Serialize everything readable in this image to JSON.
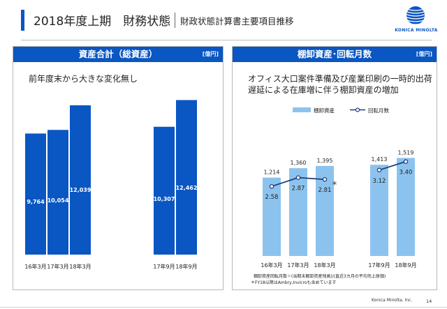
{
  "header": {
    "title": "2018年度上期　財務状態",
    "subtitle": "財政状態計算書主要項目推移",
    "logo_text": "KONICA MINOLTA"
  },
  "colors": {
    "accent": "#0a56c2",
    "bar_light": "#8cc3ee",
    "line": "#1f3f7a"
  },
  "left_panel": {
    "title": "資産合計（総資産）",
    "unit": "[億円]",
    "note": "前年度末から大きな変化無し"
  },
  "right_panel": {
    "title": "棚卸資産･回転月数",
    "unit": "[億円]",
    "note_line1": "オフィス大口案件準備及び産業印刷の一時的出荷",
    "note_line2": "遅延による在庫増に伴う棚卸資産の増加",
    "footnote1": "棚卸資産回転月数＝(当期末棚卸資産残高)/(直近3カ月の平均売上原価)",
    "footnote2": "＊FY18以降はAmbry,Invicroも含めています"
  },
  "chart_data": [
    {
      "type": "bar",
      "title": "資産合計（総資産）",
      "categories": [
        "16年3月",
        "17年3月",
        "18年3月",
        "17年9月",
        "18年9月"
      ],
      "values": [
        9764,
        10054,
        12039,
        10307,
        12462
      ],
      "value_labels": [
        "9,764",
        "10,054",
        "12,039",
        "10,307",
        "12,462"
      ],
      "unit": "億円",
      "ylim": [
        0,
        13500
      ],
      "grid": false
    },
    {
      "type": "bar",
      "title": "棚卸資産･回転月数",
      "categories": [
        "16年3月",
        "17年3月",
        "18年3月",
        "17年9月",
        "18年9月"
      ],
      "series": [
        {
          "name": "棚卸資産",
          "kind": "bar",
          "values": [
            1214,
            1360,
            1395,
            1413,
            1519
          ],
          "value_labels": [
            "1,214",
            "1,360",
            "1,395",
            "1,413",
            "1,519"
          ]
        },
        {
          "name": "回転月数",
          "kind": "line",
          "values": [
            2.58,
            2.87,
            2.81,
            3.12,
            3.4
          ],
          "value_labels": [
            "2.58",
            "2.87",
            "2.81",
            "3.12",
            "3.40"
          ],
          "annotation": "＊"
        }
      ],
      "unit": "億円",
      "legend": "top",
      "grid": false
    }
  ],
  "footer": {
    "company": "Konica Minolta, Inc.",
    "page": "14"
  }
}
